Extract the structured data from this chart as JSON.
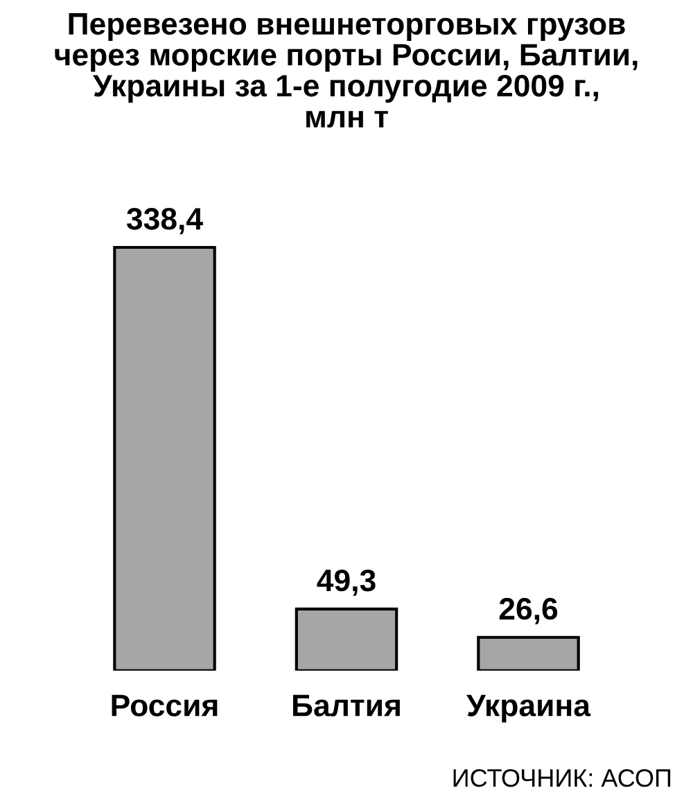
{
  "chart_data": {
    "type": "bar",
    "title": "Перевезено внешнеторговых грузов\nчерез морские порты России, Балтии,\nУкраины за 1-е полугодие 2009 г.,\nмлн т",
    "categories": [
      "Россия",
      "Балтия",
      "Украина"
    ],
    "values": [
      338.4,
      49.3,
      26.6
    ],
    "value_labels": [
      "338,4",
      "49,3",
      "26,6"
    ],
    "color": "#a6a6a6",
    "annotations": [
      "ИСТОЧНИК: АСОП"
    ]
  }
}
